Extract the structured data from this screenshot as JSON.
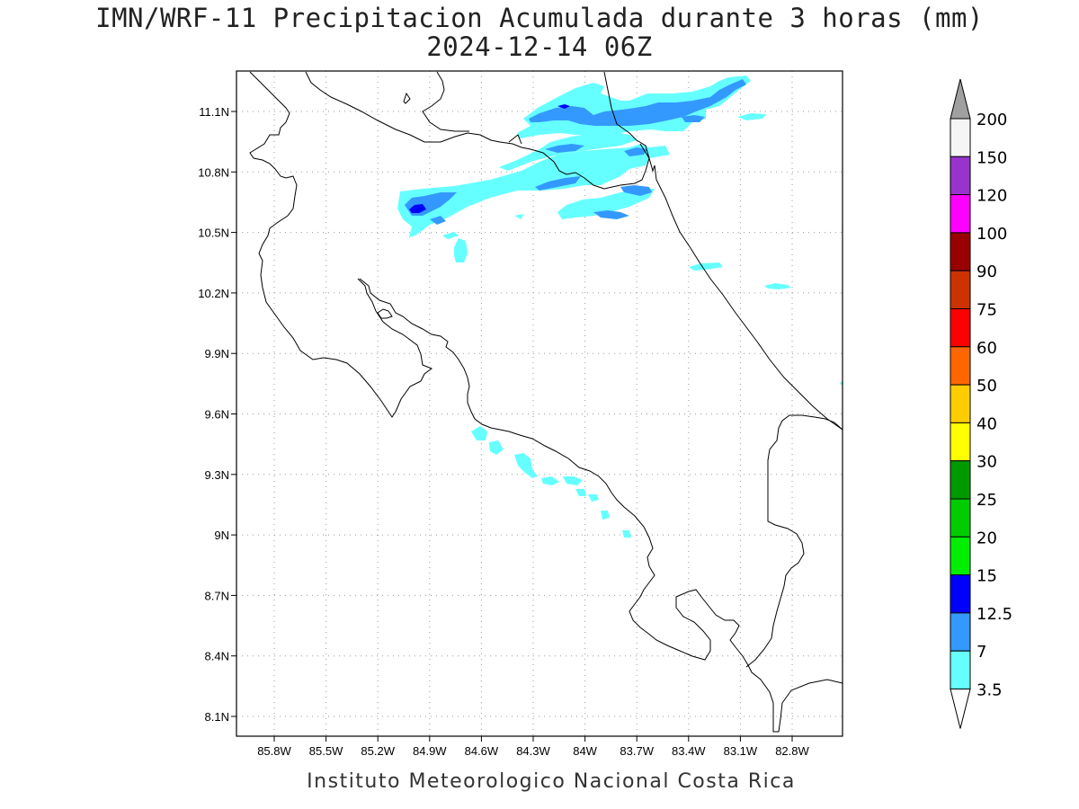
{
  "header": {
    "title_line1": "IMN/WRF-11 Precipitacion Acumulada durante 3 horas (mm)",
    "title_line2": "2024-12-14 06Z"
  },
  "map": {
    "lat_labels": [
      "11.1N",
      "10.8N",
      "10.5N",
      "10.2N",
      "9.9N",
      "9.6N",
      "9.3N",
      "9N",
      "8.7N",
      "8.4N",
      "8.1N"
    ],
    "lon_labels": [
      "85.8W",
      "85.5W",
      "85.2W",
      "84.9W",
      "84.6W",
      "84.3W",
      "84W",
      "83.7W",
      "83.4W",
      "83.1W",
      "82.8W"
    ]
  },
  "colorbar": {
    "levels": [
      "3.5",
      "7",
      "12.5",
      "15",
      "20",
      "25",
      "30",
      "40",
      "50",
      "60",
      "75",
      "90",
      "100",
      "120",
      "150",
      "200"
    ],
    "colors": [
      "#66ffff",
      "#3399ff",
      "#0000ff",
      "#00ee00",
      "#00cc00",
      "#009900",
      "#ffff00",
      "#ffcc00",
      "#ff6600",
      "#ff0000",
      "#cc3300",
      "#990000",
      "#ff00ff",
      "#9933cc",
      "#f5f5f5",
      "#a0a0a0"
    ]
  },
  "footer": {
    "credit": "Instituto Meteorologico Nacional Costa Rica"
  }
}
